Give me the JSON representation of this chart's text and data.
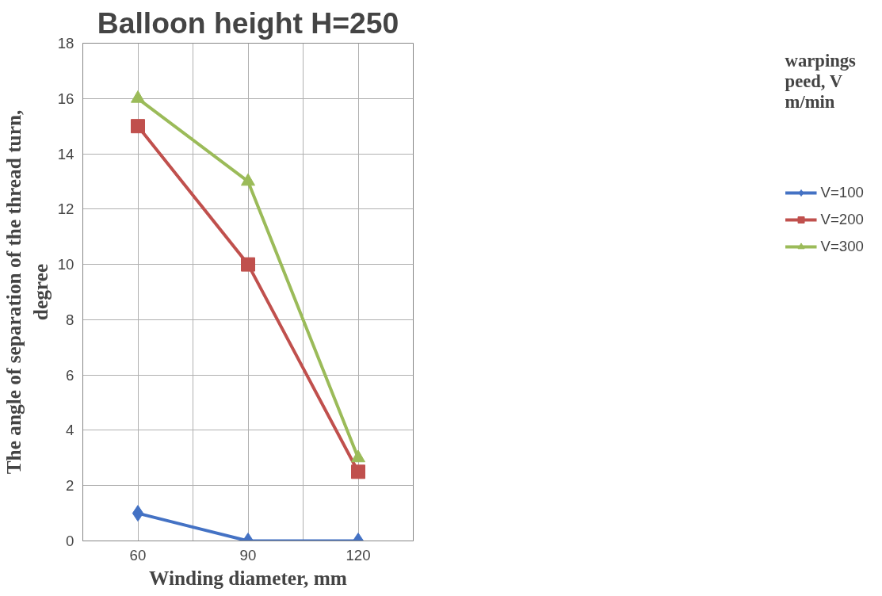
{
  "chart_data": {
    "type": "line",
    "title": "Balloon height H=250",
    "xlabel": "Winding diameter, mm",
    "ylabel": "The angle of separation of the thread turn, degree",
    "legend_title": "warpings peed, V m/min",
    "categories": [
      "60",
      "90",
      "120"
    ],
    "ylim": [
      0,
      18
    ],
    "yticks": [
      0,
      2,
      4,
      6,
      8,
      10,
      12,
      14,
      16,
      18
    ],
    "grid": true,
    "legend": "right",
    "series": [
      {
        "name": "V=100",
        "color": "#4472c4",
        "marker": "diamond",
        "values": [
          1,
          0,
          0
        ]
      },
      {
        "name": "V=200",
        "color": "#c0504d",
        "marker": "square",
        "values": [
          15,
          10,
          2.5
        ]
      },
      {
        "name": "V=300",
        "color": "#9bbb59",
        "marker": "triangle",
        "values": [
          16,
          13,
          3
        ]
      }
    ]
  }
}
